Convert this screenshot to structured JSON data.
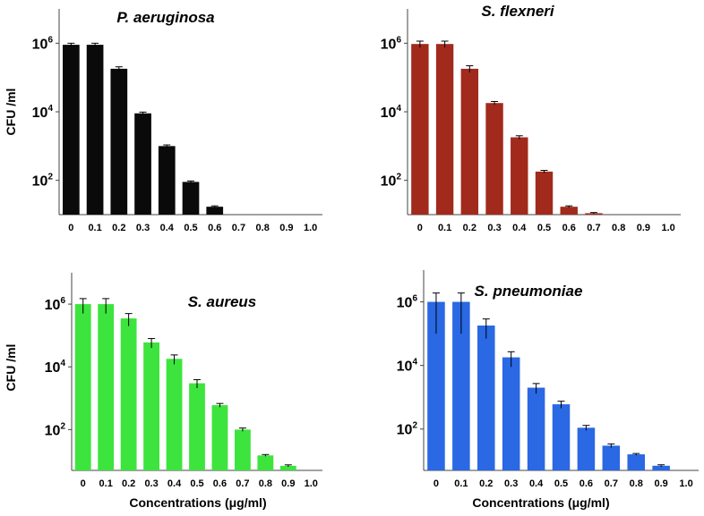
{
  "chart_data": [
    {
      "type": "bar",
      "title": "P. aeruginosa",
      "xlabel": "",
      "ylabel": "CFU /ml",
      "y_scale": "log",
      "ylim": [
        10,
        10000000
      ],
      "yticks": [
        {
          "base": "10",
          "exp": "2",
          "value": 100
        },
        {
          "base": "10",
          "exp": "4",
          "value": 10000
        },
        {
          "base": "10",
          "exp": "6",
          "value": 1000000
        }
      ],
      "categories": [
        "0",
        "0.1",
        "0.2",
        "0.3",
        "0.4",
        "0.5",
        "0.6",
        "0.7",
        "0.8",
        "0.9",
        "1.0"
      ],
      "values": [
        900000,
        900000,
        180000,
        9000,
        1000,
        90,
        17,
        null,
        null,
        null,
        null
      ],
      "errors": [
        100000,
        100000,
        25000,
        800,
        80,
        6,
        1,
        null,
        null,
        null,
        null
      ],
      "color": "#0a0a0a"
    },
    {
      "type": "bar",
      "title": "S. flexneri",
      "xlabel": "",
      "ylabel": "",
      "y_scale": "log",
      "ylim": [
        10,
        10000000
      ],
      "yticks": [
        {
          "base": "10",
          "exp": "2",
          "value": 100
        },
        {
          "base": "10",
          "exp": "4",
          "value": 10000
        },
        {
          "base": "10",
          "exp": "6",
          "value": 1000000
        }
      ],
      "categories": [
        "0",
        "0.1",
        "0.2",
        "0.3",
        "0.4",
        "0.5",
        "0.6",
        "0.7",
        "0.8",
        "0.9",
        "1.0"
      ],
      "values": [
        950000,
        950000,
        180000,
        18000,
        1800,
        180,
        17,
        11,
        null,
        null,
        null
      ],
      "errors": [
        200000,
        200000,
        40000,
        2000,
        200,
        15,
        1,
        0.5,
        null,
        null,
        null
      ],
      "color": "#a12a1c"
    },
    {
      "type": "bar",
      "title": "S. aureus",
      "xlabel": "Concentrations (μg/ml)",
      "ylabel": "CFU /ml",
      "y_scale": "log",
      "ylim": [
        5,
        10000000
      ],
      "yticks": [
        {
          "base": "10",
          "exp": "2",
          "value": 100
        },
        {
          "base": "10",
          "exp": "4",
          "value": 10000
        },
        {
          "base": "10",
          "exp": "6",
          "value": 1000000
        }
      ],
      "categories": [
        "0",
        "0.1",
        "0.2",
        "0.3",
        "0.4",
        "0.5",
        "0.6",
        "0.7",
        "0.8",
        "0.9",
        "1.0"
      ],
      "values": [
        1000000,
        1000000,
        350000,
        60000,
        18000,
        3000,
        600,
        100,
        15,
        7,
        null
      ],
      "errors": [
        500000,
        500000,
        150000,
        20000,
        6000,
        900,
        80,
        12,
        1,
        0.5,
        null
      ],
      "color": "#3de43d"
    },
    {
      "type": "bar",
      "title": "S. pneumoniae",
      "xlabel": "Concentrations (μg/ml)",
      "ylabel": "",
      "y_scale": "log",
      "ylim": [
        5,
        10000000
      ],
      "yticks": [
        {
          "base": "10",
          "exp": "2",
          "value": 100
        },
        {
          "base": "10",
          "exp": "4",
          "value": 10000
        },
        {
          "base": "10",
          "exp": "6",
          "value": 1000000
        }
      ],
      "categories": [
        "0",
        "0.1",
        "0.2",
        "0.3",
        "0.4",
        "0.5",
        "0.6",
        "0.7",
        "0.8",
        "0.9",
        "1.0"
      ],
      "values": [
        1000000,
        1000000,
        180000,
        18000,
        2000,
        600,
        110,
        30,
        16,
        7,
        null
      ],
      "errors": [
        900000,
        900000,
        110000,
        9000,
        700,
        150,
        20,
        4,
        1,
        0.5,
        null
      ],
      "color": "#2a68e4"
    }
  ]
}
